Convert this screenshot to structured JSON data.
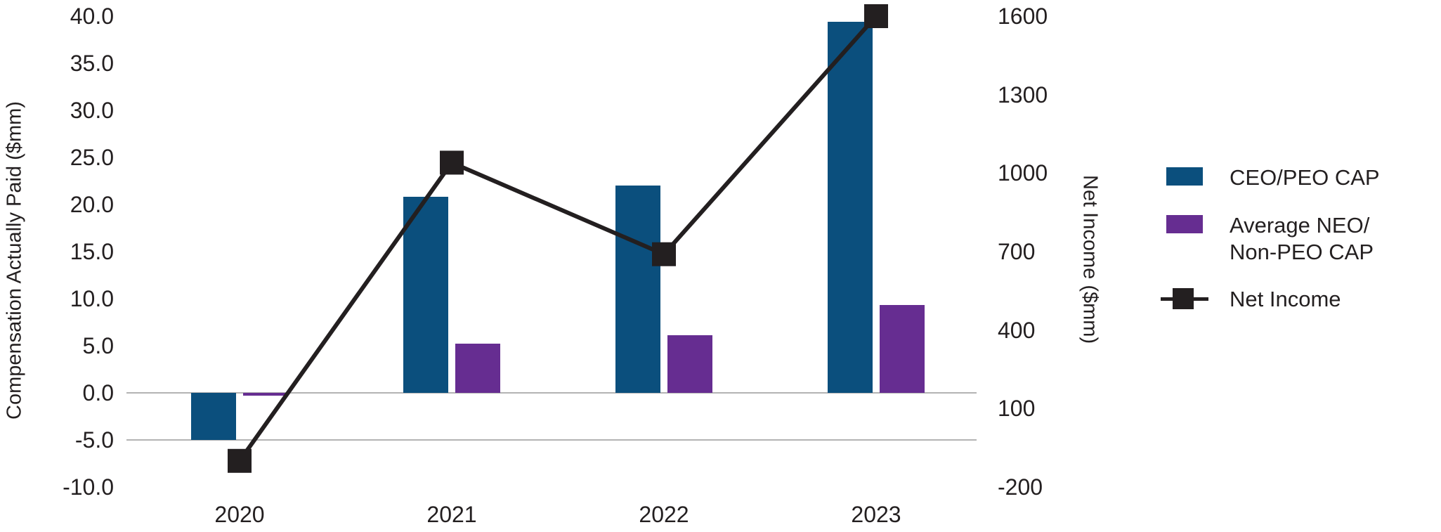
{
  "chart_data": {
    "type": "combo_bar_line",
    "categories": [
      "2020",
      "2021",
      "2022",
      "2023"
    ],
    "series": [
      {
        "name": "CEO/PEO CAP",
        "chart_type": "bar",
        "axis": "left",
        "color": "#0B4F7D",
        "values": [
          -5.0,
          20.8,
          22.0,
          39.4
        ]
      },
      {
        "name": "Average NEO/Non-PEO CAP",
        "chart_type": "bar",
        "axis": "left",
        "color": "#662D91",
        "values": [
          -0.3,
          5.2,
          6.1,
          9.3
        ]
      },
      {
        "name": "Net Income",
        "chart_type": "line",
        "axis": "right",
        "color": "#231F20",
        "values": [
          -100,
          1040,
          690,
          1600
        ]
      }
    ],
    "left_axis": {
      "title": "Compensation Actually Paid ($mm)",
      "min": -10,
      "max": 40,
      "tick_values": [
        40,
        35,
        30,
        25,
        20,
        15,
        10,
        5,
        0,
        -5,
        -10
      ],
      "tick_labels": [
        "40.0",
        "35.0",
        "30.0",
        "25.0",
        "20.0",
        "15.0",
        "10.0",
        "5.0",
        "0.0",
        "-5.0",
        "-10.0"
      ]
    },
    "right_axis": {
      "title": "Net Income ($mm)",
      "min": -200,
      "max": 1600,
      "tick_values": [
        1600,
        1300,
        1000,
        700,
        400,
        100,
        -200
      ],
      "tick_labels": [
        "1600",
        "1300",
        "1000",
        "700",
        "400",
        "100",
        "-200"
      ]
    },
    "gridline_values": [
      0,
      -5
    ],
    "grid_on": "only at 0.0 and -5.0",
    "legend_position": "right",
    "legend": {
      "items": [
        {
          "series": "CEO/PEO CAP",
          "marker": "rect",
          "color": "#0B4F7D",
          "label_lines": [
            "CEO/PEO CAP"
          ]
        },
        {
          "series": "Average NEO/Non-PEO CAP",
          "marker": "rect",
          "color": "#662D91",
          "label_lines": [
            "Average NEO/",
            "Non-PEO CAP"
          ]
        },
        {
          "series": "Net Income",
          "marker": "line-square",
          "color": "#231F20",
          "label_lines": [
            "Net Income"
          ]
        }
      ]
    },
    "colors": {
      "ceo_peo_bar": "#0B4F7D",
      "neo_non_peo_bar": "#662D91",
      "net_income": "#231F20",
      "gridline": "#B3B3B3",
      "text": "#231F20",
      "background": "#FFFFFF"
    }
  }
}
